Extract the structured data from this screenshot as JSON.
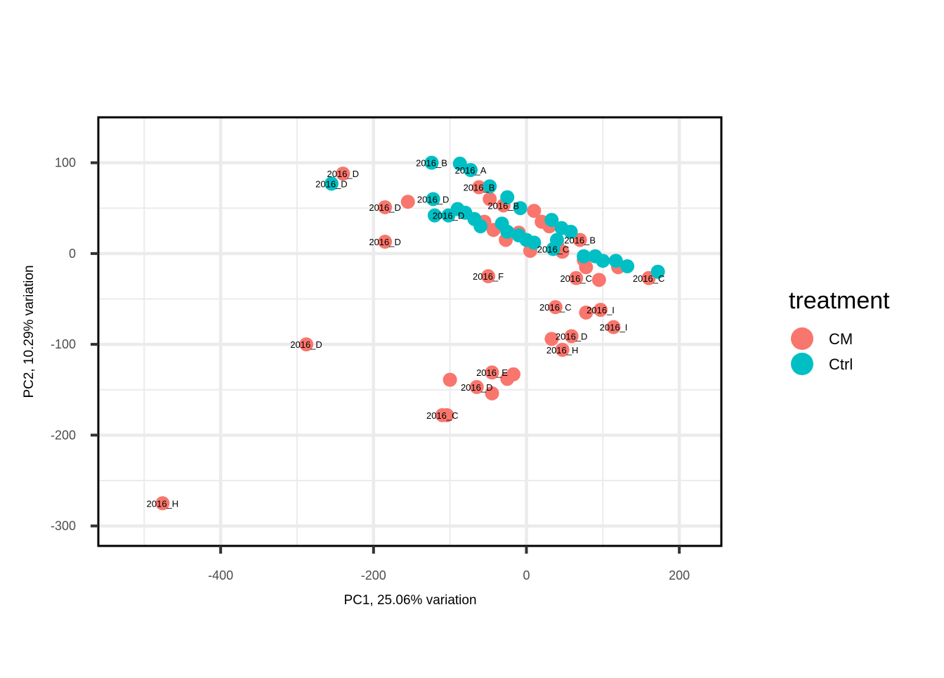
{
  "chart_data": {
    "type": "scatter",
    "xlabel": "PC1, 25.06% variation",
    "ylabel": "PC2, 10.29% variation",
    "xlim": [
      -560,
      255
    ],
    "ylim": [
      -322,
      150
    ],
    "x_ticks": [
      -400,
      -200,
      0,
      200
    ],
    "y_ticks": [
      100,
      0,
      -100,
      -200,
      -300
    ],
    "x_tick_labels": [
      "-400",
      "-200",
      "0",
      "200"
    ],
    "y_tick_labels": [
      "100",
      "0",
      "-100",
      "-200",
      "-300"
    ],
    "grid": true,
    "legend": {
      "title": "treatment",
      "position": "right",
      "entries": [
        {
          "name": "CM",
          "color": "#F8766D"
        },
        {
          "name": "Ctrl",
          "color": "#00BFC4"
        }
      ]
    },
    "series": [
      {
        "name": "CM",
        "color": "#F8766D",
        "points": [
          {
            "x": -476,
            "y": -275,
            "label": "2016_H"
          },
          {
            "x": -288,
            "y": -100,
            "label": "2016_D"
          },
          {
            "x": -240,
            "y": 88,
            "label": "2016_D"
          },
          {
            "x": -185,
            "y": 51,
            "label": "2016_D"
          },
          {
            "x": -155,
            "y": 57,
            "label": ""
          },
          {
            "x": -185,
            "y": 13,
            "label": "2016_D"
          },
          {
            "x": -50,
            "y": -25,
            "label": "2016_F"
          },
          {
            "x": -100,
            "y": -139,
            "label": ""
          },
          {
            "x": -65,
            "y": -147,
            "label": "2016_D"
          },
          {
            "x": -45,
            "y": -154,
            "label": ""
          },
          {
            "x": -45,
            "y": -131,
            "label": "2016_E"
          },
          {
            "x": -25,
            "y": -138,
            "label": ""
          },
          {
            "x": -17,
            "y": -133,
            "label": ""
          },
          {
            "x": -110,
            "y": -178,
            "label": "2016_C"
          },
          {
            "x": -104,
            "y": -178,
            "label": ""
          },
          {
            "x": -62,
            "y": 73,
            "label": "2016_B"
          },
          {
            "x": -48,
            "y": 60,
            "label": ""
          },
          {
            "x": -30,
            "y": 53,
            "label": "2016_B"
          },
          {
            "x": -55,
            "y": 35,
            "label": ""
          },
          {
            "x": -43,
            "y": 26,
            "label": ""
          },
          {
            "x": -27,
            "y": 15,
            "label": ""
          },
          {
            "x": -10,
            "y": 23,
            "label": ""
          },
          {
            "x": 10,
            "y": 47,
            "label": ""
          },
          {
            "x": 20,
            "y": 35,
            "label": ""
          },
          {
            "x": 30,
            "y": 30,
            "label": ""
          },
          {
            "x": 5,
            "y": 3,
            "label": ""
          },
          {
            "x": 40,
            "y": 10,
            "label": ""
          },
          {
            "x": 47,
            "y": 2,
            "label": ""
          },
          {
            "x": 70,
            "y": 15,
            "label": "2016_B"
          },
          {
            "x": 75,
            "y": -7,
            "label": ""
          },
          {
            "x": 78,
            "y": -15,
            "label": ""
          },
          {
            "x": 65,
            "y": -27,
            "label": "2016_C"
          },
          {
            "x": 95,
            "y": -29,
            "label": ""
          },
          {
            "x": 120,
            "y": -15,
            "label": ""
          },
          {
            "x": 160,
            "y": -27,
            "label": "2016_C"
          },
          {
            "x": 38,
            "y": -59,
            "label": "2016_C"
          },
          {
            "x": 78,
            "y": -65,
            "label": ""
          },
          {
            "x": 97,
            "y": -62,
            "label": "2016_I"
          },
          {
            "x": 114,
            "y": -81,
            "label": "2016_I"
          },
          {
            "x": 33,
            "y": -94,
            "label": ""
          },
          {
            "x": 59,
            "y": -91,
            "label": "2016_D"
          },
          {
            "x": 47,
            "y": -106,
            "label": "2016_H"
          }
        ]
      },
      {
        "name": "Ctrl",
        "color": "#00BFC4",
        "points": [
          {
            "x": -124,
            "y": 100,
            "label": "2016_B"
          },
          {
            "x": -87,
            "y": 99,
            "label": ""
          },
          {
            "x": -73,
            "y": 92,
            "label": "2016_A"
          },
          {
            "x": -255,
            "y": 77,
            "label": "2016_D"
          },
          {
            "x": -122,
            "y": 60,
            "label": "2016_D"
          },
          {
            "x": -48,
            "y": 74,
            "label": ""
          },
          {
            "x": -25,
            "y": 62,
            "label": ""
          },
          {
            "x": -8,
            "y": 50,
            "label": ""
          },
          {
            "x": -120,
            "y": 42,
            "label": ""
          },
          {
            "x": -102,
            "y": 42,
            "label": "2016_D"
          },
          {
            "x": -90,
            "y": 49,
            "label": ""
          },
          {
            "x": -80,
            "y": 45,
            "label": ""
          },
          {
            "x": -68,
            "y": 38,
            "label": ""
          },
          {
            "x": -60,
            "y": 30,
            "label": ""
          },
          {
            "x": -32,
            "y": 33,
            "label": ""
          },
          {
            "x": -25,
            "y": 24,
            "label": ""
          },
          {
            "x": -10,
            "y": 20,
            "label": ""
          },
          {
            "x": 0,
            "y": 15,
            "label": ""
          },
          {
            "x": 10,
            "y": 12,
            "label": ""
          },
          {
            "x": 33,
            "y": 37,
            "label": ""
          },
          {
            "x": 46,
            "y": 28,
            "label": ""
          },
          {
            "x": 58,
            "y": 24,
            "label": ""
          },
          {
            "x": 40,
            "y": 15,
            "label": ""
          },
          {
            "x": 35,
            "y": 5,
            "label": "2016_C"
          },
          {
            "x": 75,
            "y": -3,
            "label": ""
          },
          {
            "x": 90,
            "y": -3,
            "label": ""
          },
          {
            "x": 100,
            "y": -8,
            "label": ""
          },
          {
            "x": 117,
            "y": -8,
            "label": ""
          },
          {
            "x": 132,
            "y": -14,
            "label": ""
          },
          {
            "x": 172,
            "y": -20,
            "label": ""
          }
        ]
      }
    ]
  }
}
